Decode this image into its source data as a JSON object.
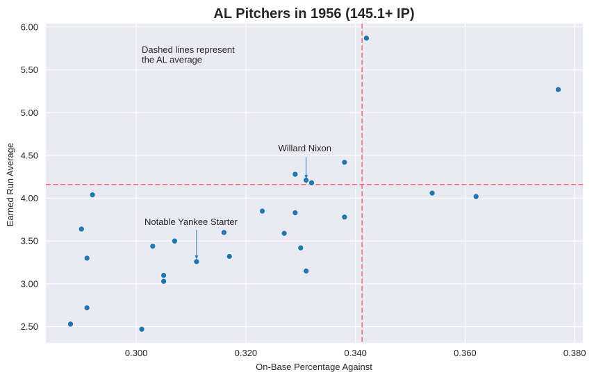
{
  "chart_data": {
    "type": "scatter",
    "title": "AL Pitchers in 1956 (145.1+ IP)",
    "xlabel": "On-Base Percentage Against",
    "ylabel": "Earned Run Average",
    "xlim": [
      0.2835,
      0.3815
    ],
    "ylim": [
      2.31,
      6.04
    ],
    "xticks": [
      0.3,
      0.32,
      0.34,
      0.36,
      0.38
    ],
    "xtick_labels": [
      "0.300",
      "0.320",
      "0.340",
      "0.360",
      "0.380"
    ],
    "yticks": [
      2.5,
      3.0,
      3.5,
      4.0,
      4.5,
      5.0,
      5.5,
      6.0
    ],
    "ytick_labels": [
      "2.50",
      "3.00",
      "3.50",
      "4.00",
      "4.50",
      "5.00",
      "5.50",
      "6.00"
    ],
    "grid": true,
    "background": "#eaeaf2",
    "point_color": "#1f77b4",
    "reference_line_color": "#ff6b7a",
    "reference_lines": {
      "x": 0.3412,
      "y": 4.16
    },
    "points": [
      {
        "x": 0.288,
        "y": 2.53
      },
      {
        "x": 0.29,
        "y": 3.64
      },
      {
        "x": 0.291,
        "y": 3.3
      },
      {
        "x": 0.291,
        "y": 2.72
      },
      {
        "x": 0.292,
        "y": 4.04
      },
      {
        "x": 0.301,
        "y": 2.47
      },
      {
        "x": 0.303,
        "y": 3.44
      },
      {
        "x": 0.305,
        "y": 3.1
      },
      {
        "x": 0.305,
        "y": 3.03
      },
      {
        "x": 0.307,
        "y": 3.5
      },
      {
        "x": 0.311,
        "y": 3.26
      },
      {
        "x": 0.316,
        "y": 3.6
      },
      {
        "x": 0.317,
        "y": 3.32
      },
      {
        "x": 0.323,
        "y": 3.85
      },
      {
        "x": 0.327,
        "y": 3.59
      },
      {
        "x": 0.329,
        "y": 3.83
      },
      {
        "x": 0.329,
        "y": 4.28
      },
      {
        "x": 0.33,
        "y": 3.42
      },
      {
        "x": 0.331,
        "y": 4.21
      },
      {
        "x": 0.331,
        "y": 3.15
      },
      {
        "x": 0.332,
        "y": 4.18
      },
      {
        "x": 0.338,
        "y": 4.42
      },
      {
        "x": 0.338,
        "y": 3.78
      },
      {
        "x": 0.342,
        "y": 5.87
      },
      {
        "x": 0.354,
        "y": 4.06
      },
      {
        "x": 0.362,
        "y": 4.02
      },
      {
        "x": 0.377,
        "y": 5.27
      }
    ],
    "annotations": [
      {
        "text": "Dashed lines represent",
        "x": 0.301,
        "y": 5.7,
        "type": "note"
      },
      {
        "text": "the AL average",
        "x": 0.301,
        "y": 5.58,
        "type": "note"
      },
      {
        "text": "Willard Nixon",
        "x": 0.3259,
        "y": 4.55,
        "type": "label",
        "target": {
          "x": 0.331,
          "y": 4.23
        },
        "arrow_from": {
          "x": 0.331,
          "y": 4.48
        }
      },
      {
        "text": "Notable Yankee Starter",
        "x": 0.3015,
        "y": 3.69,
        "type": "label",
        "target": {
          "x": 0.311,
          "y": 3.29
        },
        "arrow_from": {
          "x": 0.311,
          "y": 3.63
        }
      }
    ]
  }
}
